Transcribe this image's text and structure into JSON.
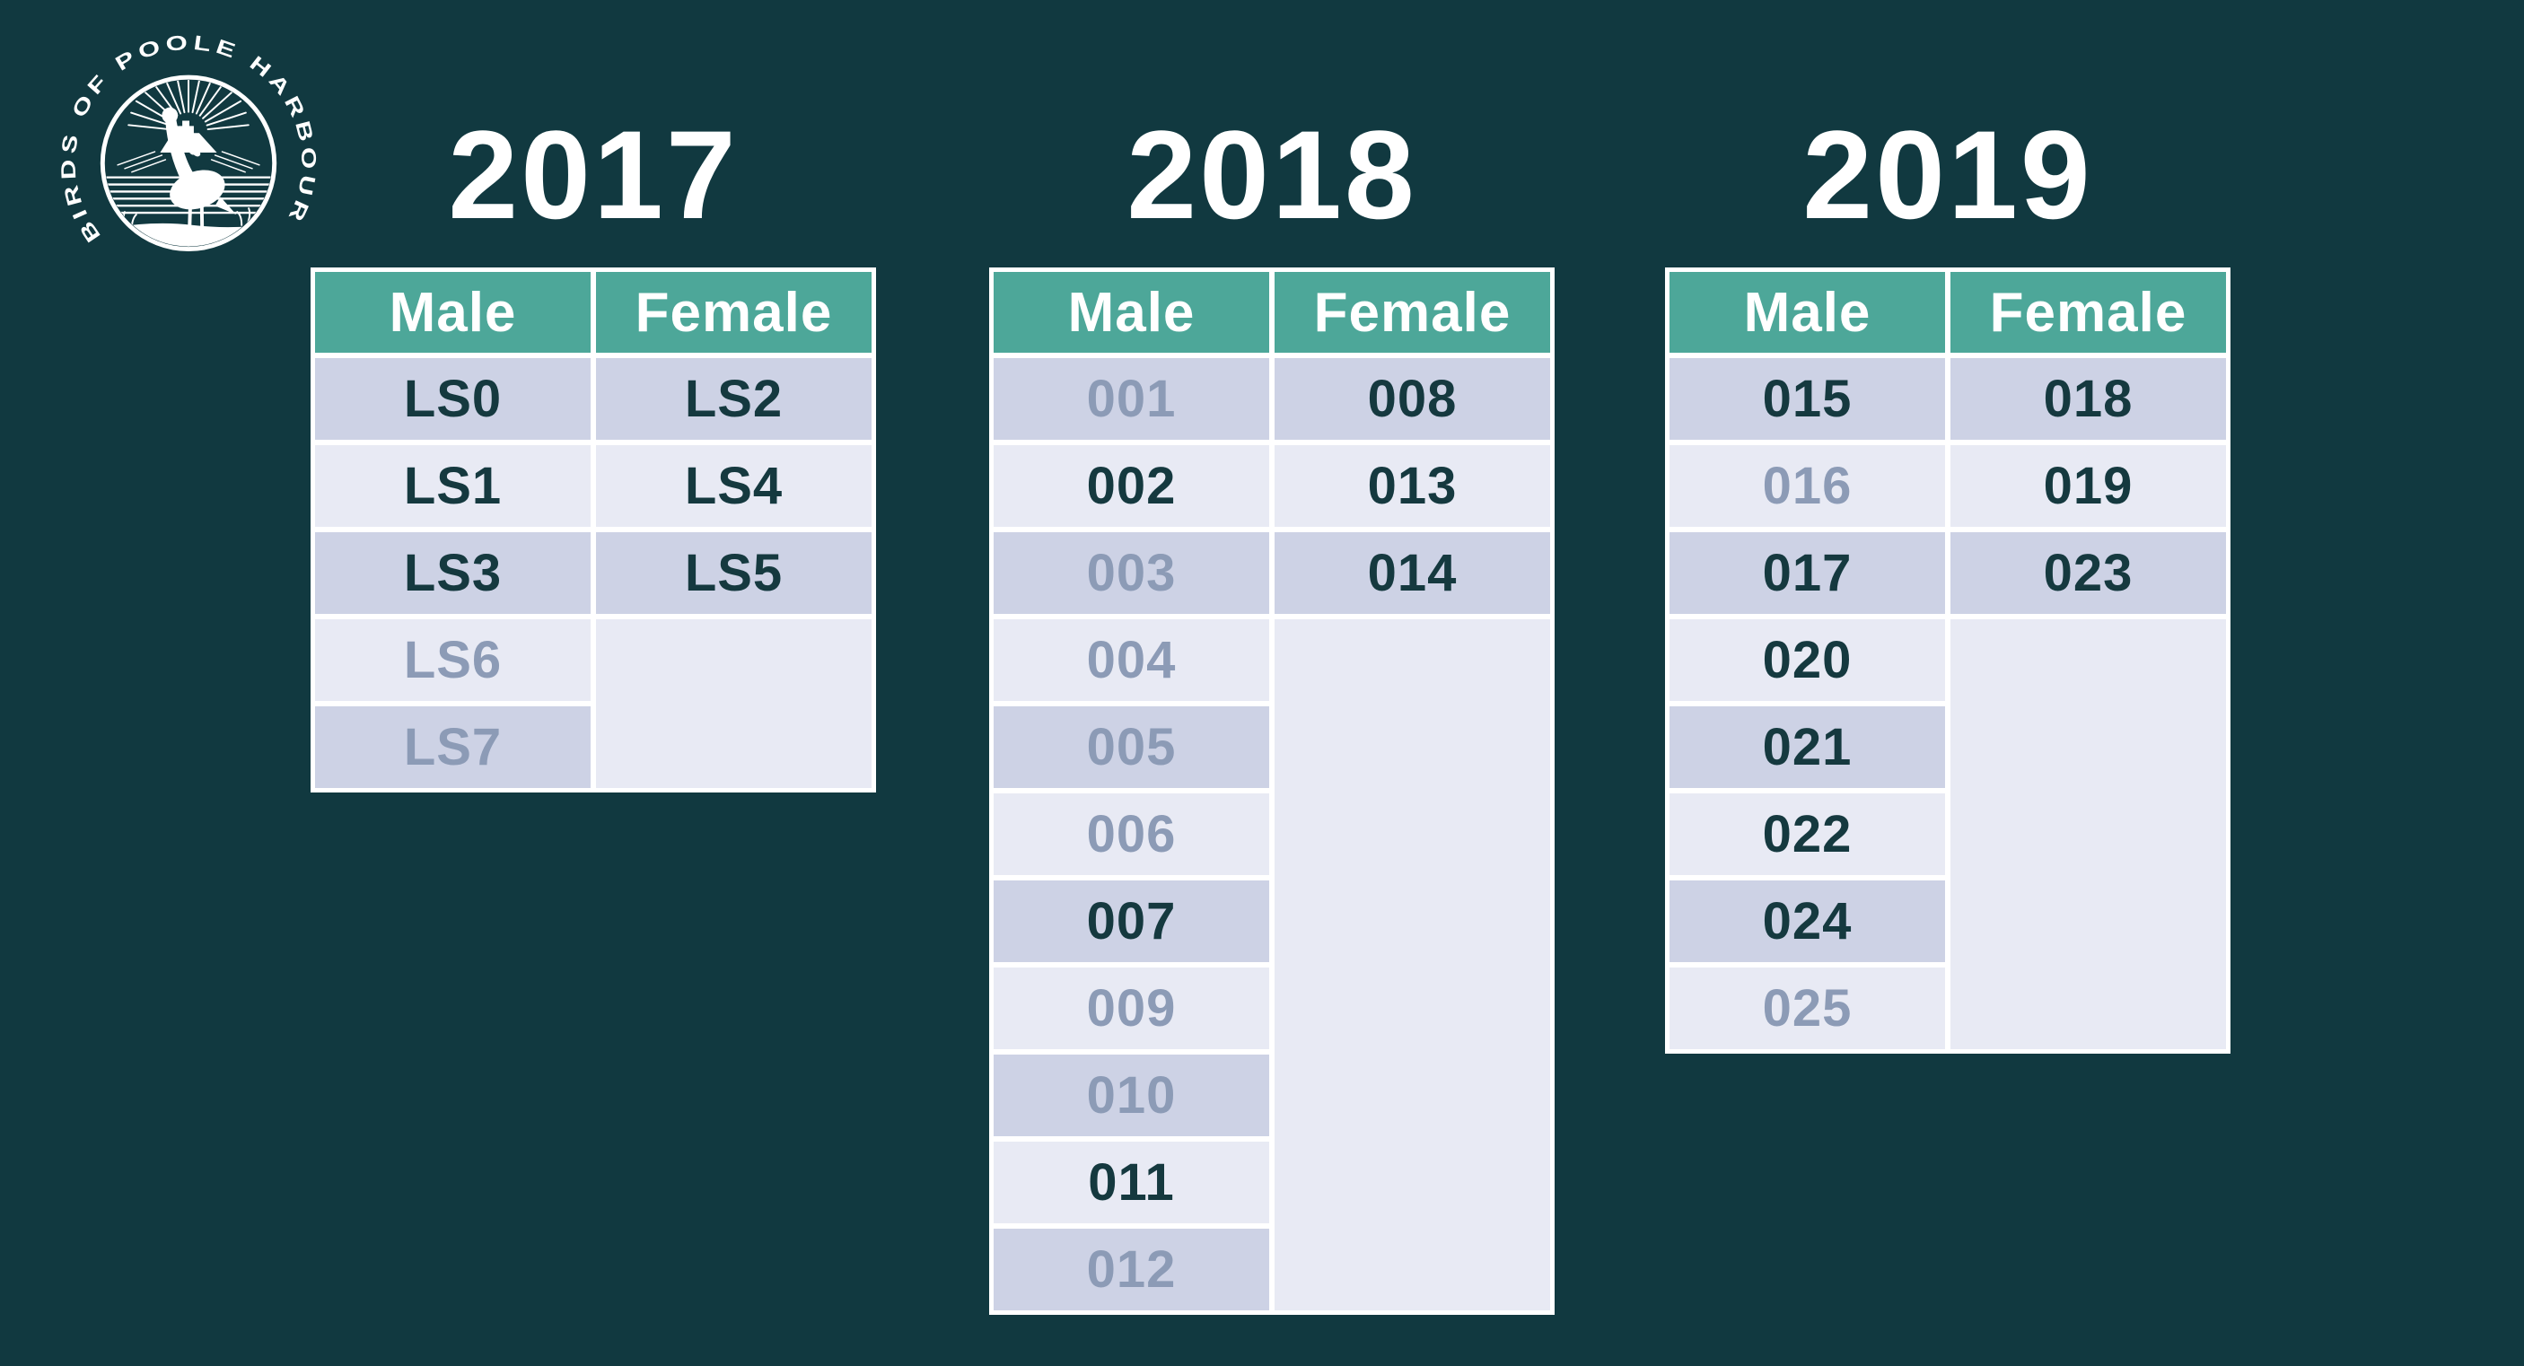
{
  "logo": {
    "arc_text": "BIRDS OF POOLE HARBOUR"
  },
  "palette": {
    "background": "#113940",
    "header_green": "#4da799",
    "row_dark": "#cdd2e5",
    "row_light": "#e8eaf4",
    "text_dark": "#15393f",
    "text_faded": "#8c9bb6",
    "title_white": "#ffffff"
  },
  "column_headers": [
    "Male",
    "Female"
  ],
  "years": [
    {
      "year": "2017",
      "male": [
        {
          "tag": "LS0",
          "faded": false
        },
        {
          "tag": "LS1",
          "faded": false
        },
        {
          "tag": "LS3",
          "faded": false
        },
        {
          "tag": "LS6",
          "faded": true
        },
        {
          "tag": "LS7",
          "faded": true
        }
      ],
      "female": [
        {
          "tag": "LS2",
          "faded": false
        },
        {
          "tag": "LS4",
          "faded": false
        },
        {
          "tag": "LS5",
          "faded": false
        }
      ]
    },
    {
      "year": "2018",
      "male": [
        {
          "tag": "001",
          "faded": true
        },
        {
          "tag": "002",
          "faded": false
        },
        {
          "tag": "003",
          "faded": true
        },
        {
          "tag": "004",
          "faded": true
        },
        {
          "tag": "005",
          "faded": true
        },
        {
          "tag": "006",
          "faded": true
        },
        {
          "tag": "007",
          "faded": false
        },
        {
          "tag": "009",
          "faded": true
        },
        {
          "tag": "010",
          "faded": true
        },
        {
          "tag": "011",
          "faded": false
        },
        {
          "tag": "012",
          "faded": true
        }
      ],
      "female": [
        {
          "tag": "008",
          "faded": false
        },
        {
          "tag": "013",
          "faded": false
        },
        {
          "tag": "014",
          "faded": false
        }
      ]
    },
    {
      "year": "2019",
      "male": [
        {
          "tag": "015",
          "faded": false
        },
        {
          "tag": "016",
          "faded": true
        },
        {
          "tag": "017",
          "faded": false
        },
        {
          "tag": "020",
          "faded": false
        },
        {
          "tag": "021",
          "faded": false
        },
        {
          "tag": "022",
          "faded": false
        },
        {
          "tag": "024",
          "faded": false
        },
        {
          "tag": "025",
          "faded": true
        }
      ],
      "female": [
        {
          "tag": "018",
          "faded": false
        },
        {
          "tag": "019",
          "faded": false
        },
        {
          "tag": "023",
          "faded": false
        }
      ]
    }
  ]
}
